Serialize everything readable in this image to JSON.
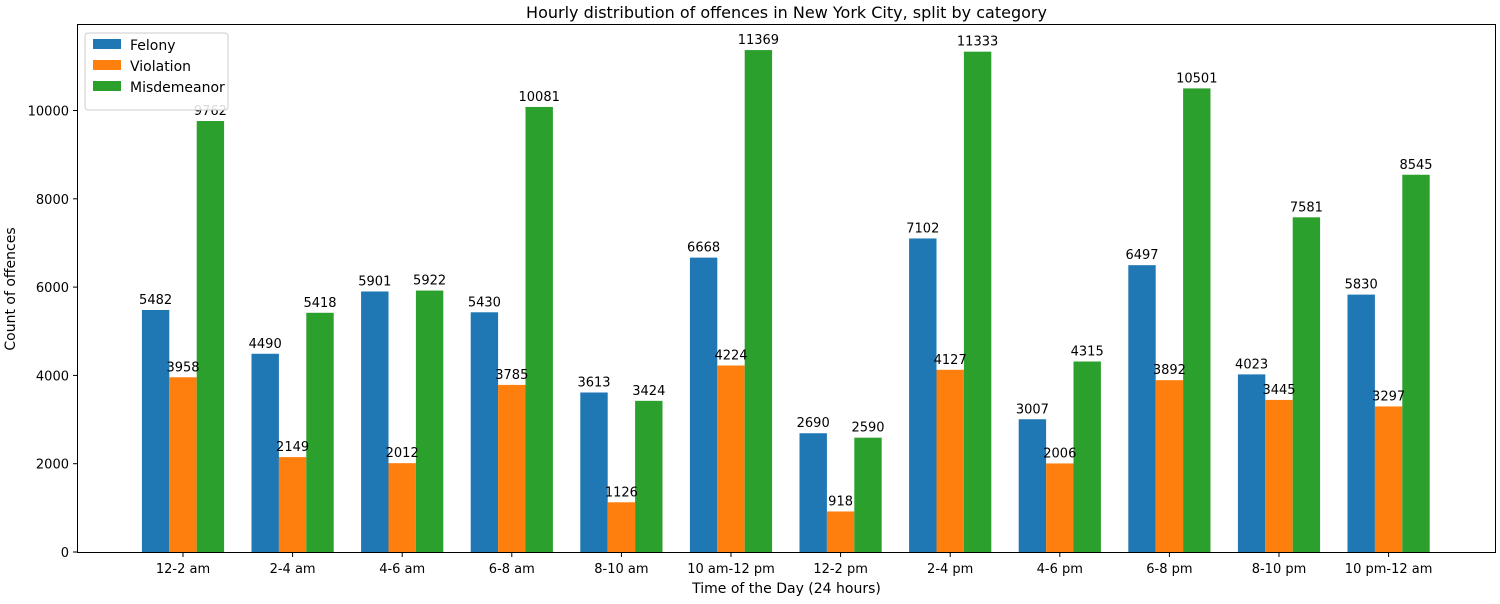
{
  "chart_data": {
    "type": "bar",
    "title": "Hourly distribution of offences in New York City, split by category",
    "xlabel": "Time of the Day (24 hours)",
    "ylabel": "Count of offences",
    "categories": [
      "12-2 am",
      "2-4 am",
      "4-6 am",
      "6-8 am",
      "8-10 am",
      "10 am-12 pm",
      "12-2 pm",
      "2-4 pm",
      "4-6 pm",
      "6-8 pm",
      "8-10 pm",
      "10 pm-12 am"
    ],
    "series": [
      {
        "name": "Felony",
        "color": "#1f77b4",
        "values": [
          5482,
          4490,
          5901,
          5430,
          3613,
          6668,
          2690,
          7102,
          3007,
          6497,
          4023,
          5830
        ]
      },
      {
        "name": "Violation",
        "color": "#ff7f0e",
        "values": [
          3958,
          2149,
          2012,
          3785,
          1126,
          4224,
          918,
          4127,
          2006,
          3892,
          3445,
          3297
        ]
      },
      {
        "name": "Misdemeanor",
        "color": "#2ca02c",
        "values": [
          9762,
          5418,
          5922,
          10081,
          3424,
          11369,
          2590,
          11333,
          4315,
          10501,
          7581,
          8545
        ]
      }
    ],
    "ylim": [
      0,
      11937
    ],
    "yticks": [
      0,
      2000,
      4000,
      6000,
      8000,
      10000
    ],
    "grid": false,
    "legend_position": "top-left",
    "data_labels": true
  }
}
